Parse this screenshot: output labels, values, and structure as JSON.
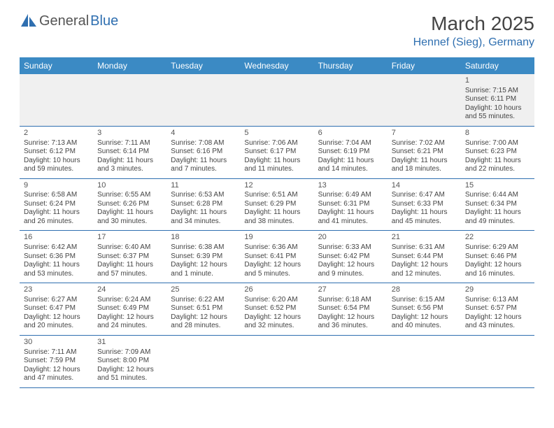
{
  "header": {
    "logo_general": "General",
    "logo_blue": "Blue",
    "month_title": "March 2025",
    "location": "Hennef (Sieg), Germany"
  },
  "colors": {
    "header_bg": "#3b8ac4",
    "accent": "#2f6fb0",
    "row0_bg": "#f0f0f0",
    "text": "#444444",
    "border": "#2f6fb0"
  },
  "daynames": [
    "Sunday",
    "Monday",
    "Tuesday",
    "Wednesday",
    "Thursday",
    "Friday",
    "Saturday"
  ],
  "weeks": [
    [
      null,
      null,
      null,
      null,
      null,
      null,
      {
        "n": "1",
        "sr": "Sunrise: 7:15 AM",
        "ss": "Sunset: 6:11 PM",
        "dl": "Daylight: 10 hours and 55 minutes."
      }
    ],
    [
      {
        "n": "2",
        "sr": "Sunrise: 7:13 AM",
        "ss": "Sunset: 6:12 PM",
        "dl": "Daylight: 10 hours and 59 minutes."
      },
      {
        "n": "3",
        "sr": "Sunrise: 7:11 AM",
        "ss": "Sunset: 6:14 PM",
        "dl": "Daylight: 11 hours and 3 minutes."
      },
      {
        "n": "4",
        "sr": "Sunrise: 7:08 AM",
        "ss": "Sunset: 6:16 PM",
        "dl": "Daylight: 11 hours and 7 minutes."
      },
      {
        "n": "5",
        "sr": "Sunrise: 7:06 AM",
        "ss": "Sunset: 6:17 PM",
        "dl": "Daylight: 11 hours and 11 minutes."
      },
      {
        "n": "6",
        "sr": "Sunrise: 7:04 AM",
        "ss": "Sunset: 6:19 PM",
        "dl": "Daylight: 11 hours and 14 minutes."
      },
      {
        "n": "7",
        "sr": "Sunrise: 7:02 AM",
        "ss": "Sunset: 6:21 PM",
        "dl": "Daylight: 11 hours and 18 minutes."
      },
      {
        "n": "8",
        "sr": "Sunrise: 7:00 AM",
        "ss": "Sunset: 6:23 PM",
        "dl": "Daylight: 11 hours and 22 minutes."
      }
    ],
    [
      {
        "n": "9",
        "sr": "Sunrise: 6:58 AM",
        "ss": "Sunset: 6:24 PM",
        "dl": "Daylight: 11 hours and 26 minutes."
      },
      {
        "n": "10",
        "sr": "Sunrise: 6:55 AM",
        "ss": "Sunset: 6:26 PM",
        "dl": "Daylight: 11 hours and 30 minutes."
      },
      {
        "n": "11",
        "sr": "Sunrise: 6:53 AM",
        "ss": "Sunset: 6:28 PM",
        "dl": "Daylight: 11 hours and 34 minutes."
      },
      {
        "n": "12",
        "sr": "Sunrise: 6:51 AM",
        "ss": "Sunset: 6:29 PM",
        "dl": "Daylight: 11 hours and 38 minutes."
      },
      {
        "n": "13",
        "sr": "Sunrise: 6:49 AM",
        "ss": "Sunset: 6:31 PM",
        "dl": "Daylight: 11 hours and 41 minutes."
      },
      {
        "n": "14",
        "sr": "Sunrise: 6:47 AM",
        "ss": "Sunset: 6:33 PM",
        "dl": "Daylight: 11 hours and 45 minutes."
      },
      {
        "n": "15",
        "sr": "Sunrise: 6:44 AM",
        "ss": "Sunset: 6:34 PM",
        "dl": "Daylight: 11 hours and 49 minutes."
      }
    ],
    [
      {
        "n": "16",
        "sr": "Sunrise: 6:42 AM",
        "ss": "Sunset: 6:36 PM",
        "dl": "Daylight: 11 hours and 53 minutes."
      },
      {
        "n": "17",
        "sr": "Sunrise: 6:40 AM",
        "ss": "Sunset: 6:37 PM",
        "dl": "Daylight: 11 hours and 57 minutes."
      },
      {
        "n": "18",
        "sr": "Sunrise: 6:38 AM",
        "ss": "Sunset: 6:39 PM",
        "dl": "Daylight: 12 hours and 1 minute."
      },
      {
        "n": "19",
        "sr": "Sunrise: 6:36 AM",
        "ss": "Sunset: 6:41 PM",
        "dl": "Daylight: 12 hours and 5 minutes."
      },
      {
        "n": "20",
        "sr": "Sunrise: 6:33 AM",
        "ss": "Sunset: 6:42 PM",
        "dl": "Daylight: 12 hours and 9 minutes."
      },
      {
        "n": "21",
        "sr": "Sunrise: 6:31 AM",
        "ss": "Sunset: 6:44 PM",
        "dl": "Daylight: 12 hours and 12 minutes."
      },
      {
        "n": "22",
        "sr": "Sunrise: 6:29 AM",
        "ss": "Sunset: 6:46 PM",
        "dl": "Daylight: 12 hours and 16 minutes."
      }
    ],
    [
      {
        "n": "23",
        "sr": "Sunrise: 6:27 AM",
        "ss": "Sunset: 6:47 PM",
        "dl": "Daylight: 12 hours and 20 minutes."
      },
      {
        "n": "24",
        "sr": "Sunrise: 6:24 AM",
        "ss": "Sunset: 6:49 PM",
        "dl": "Daylight: 12 hours and 24 minutes."
      },
      {
        "n": "25",
        "sr": "Sunrise: 6:22 AM",
        "ss": "Sunset: 6:51 PM",
        "dl": "Daylight: 12 hours and 28 minutes."
      },
      {
        "n": "26",
        "sr": "Sunrise: 6:20 AM",
        "ss": "Sunset: 6:52 PM",
        "dl": "Daylight: 12 hours and 32 minutes."
      },
      {
        "n": "27",
        "sr": "Sunrise: 6:18 AM",
        "ss": "Sunset: 6:54 PM",
        "dl": "Daylight: 12 hours and 36 minutes."
      },
      {
        "n": "28",
        "sr": "Sunrise: 6:15 AM",
        "ss": "Sunset: 6:56 PM",
        "dl": "Daylight: 12 hours and 40 minutes."
      },
      {
        "n": "29",
        "sr": "Sunrise: 6:13 AM",
        "ss": "Sunset: 6:57 PM",
        "dl": "Daylight: 12 hours and 43 minutes."
      }
    ],
    [
      {
        "n": "30",
        "sr": "Sunrise: 7:11 AM",
        "ss": "Sunset: 7:59 PM",
        "dl": "Daylight: 12 hours and 47 minutes."
      },
      {
        "n": "31",
        "sr": "Sunrise: 7:09 AM",
        "ss": "Sunset: 8:00 PM",
        "dl": "Daylight: 12 hours and 51 minutes."
      },
      null,
      null,
      null,
      null,
      null
    ]
  ]
}
